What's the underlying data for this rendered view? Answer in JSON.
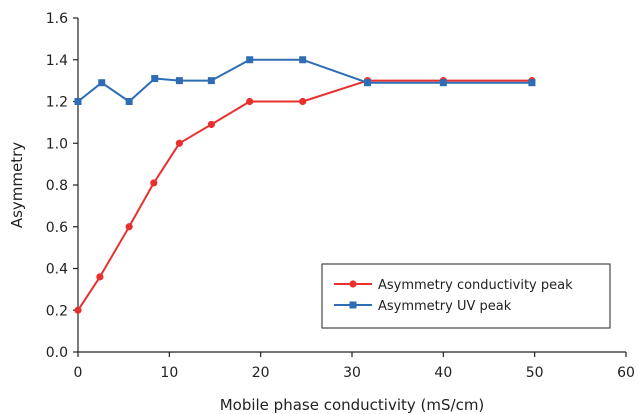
{
  "chart_data": {
    "type": "line",
    "title": "",
    "xlabel": "Mobile phase conductivity (mS/cm)",
    "ylabel": "Asymmetry",
    "xlim": [
      0,
      60
    ],
    "ylim": [
      0,
      1.6
    ],
    "x_ticks": [
      "0",
      "10",
      "20",
      "30",
      "40",
      "50",
      "60"
    ],
    "y_ticks": [
      "0.0",
      "0.2",
      "0.4",
      "0.6",
      "0.8",
      "1.0",
      "1.2",
      "1.4",
      "1.6"
    ],
    "grid": false,
    "legend_position": "bottom-right",
    "series": [
      {
        "name": "Asymmetry conductivity peak",
        "color": "#e8312f",
        "marker": "circle",
        "x": [
          0,
          2.4,
          5.6,
          8.3,
          11.1,
          14.6,
          18.8,
          24.6,
          31.7,
          40.0,
          49.7
        ],
        "y": [
          0.2,
          0.36,
          0.6,
          0.81,
          1.0,
          1.09,
          1.2,
          1.2,
          1.3,
          1.3,
          1.3
        ]
      },
      {
        "name": "Asymmetry UV peak",
        "color": "#2e6db4",
        "marker": "square",
        "x": [
          0,
          2.6,
          5.6,
          8.4,
          11.1,
          14.6,
          18.8,
          24.6,
          31.7,
          40.0,
          49.7
        ],
        "y": [
          1.2,
          1.29,
          1.2,
          1.31,
          1.3,
          1.3,
          1.4,
          1.4,
          1.29,
          1.29,
          1.29
        ]
      }
    ]
  }
}
